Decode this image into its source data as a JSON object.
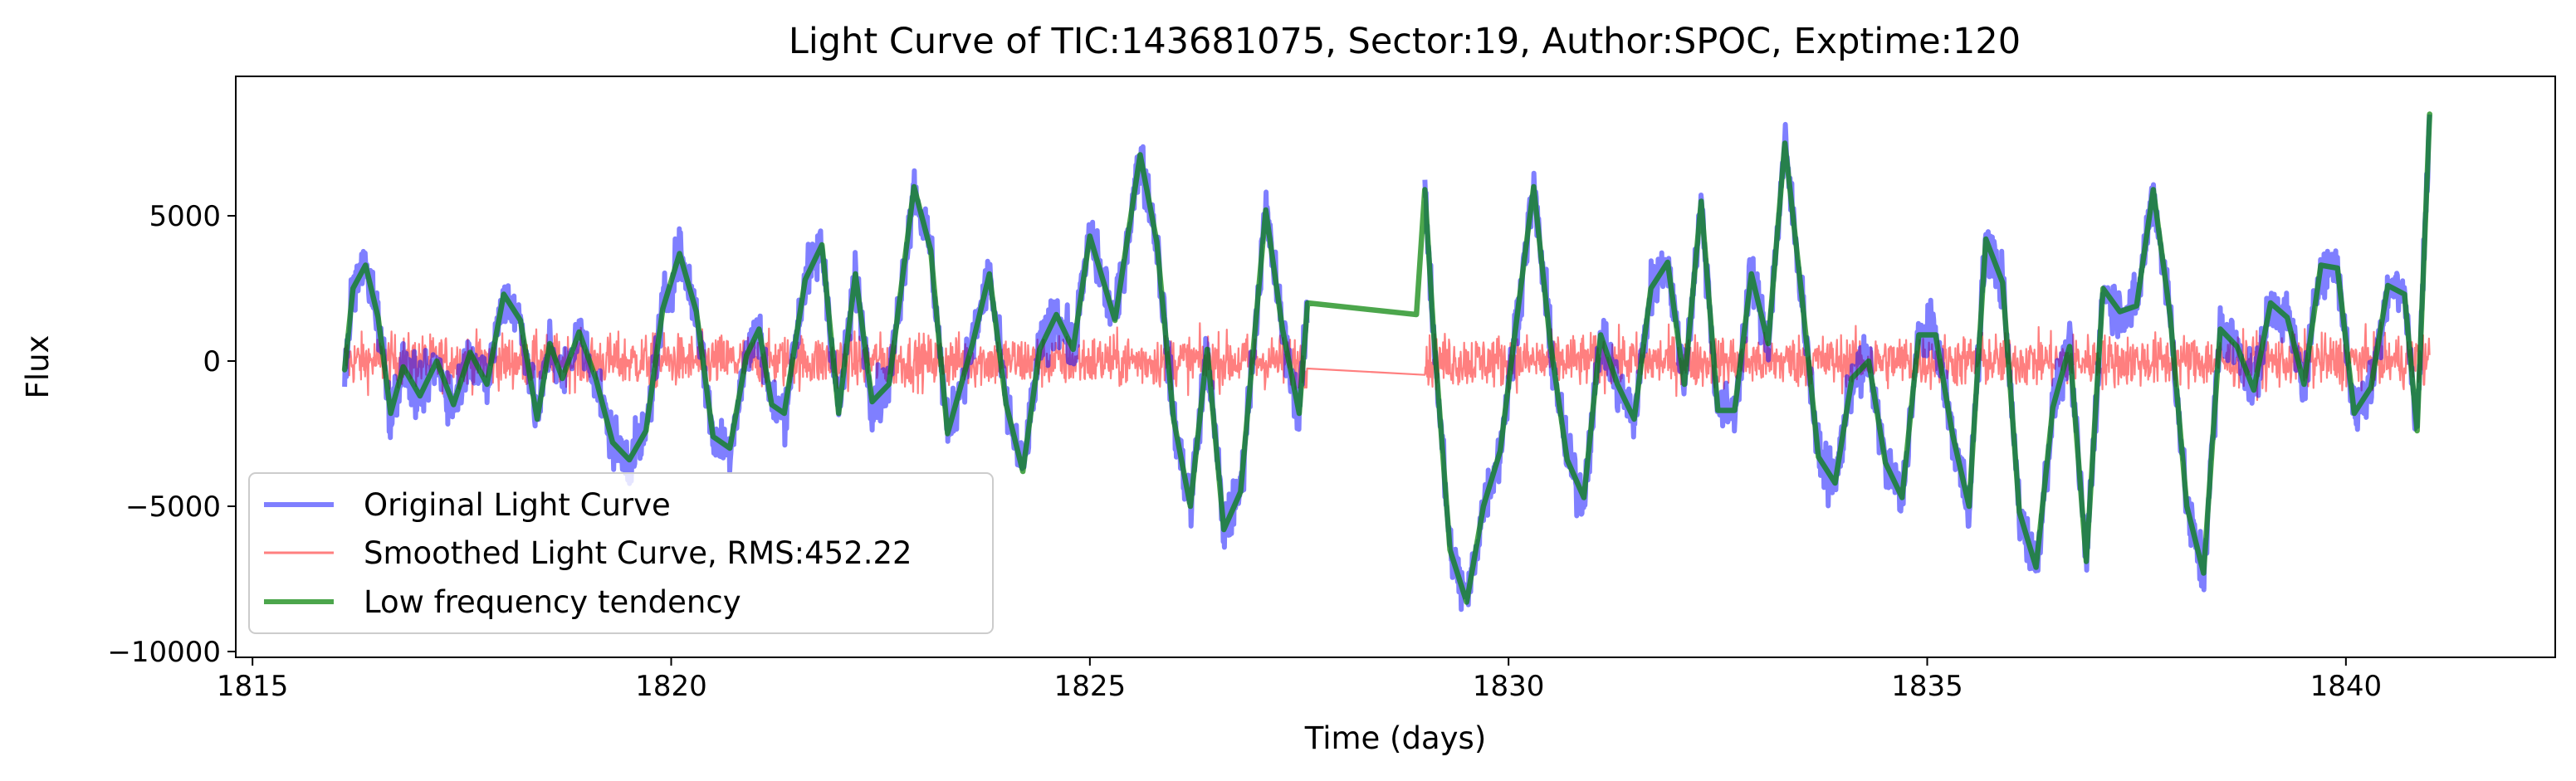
{
  "chart_data": {
    "type": "line",
    "title": "Light Curve of TIC:143681075, Sector:19, Author:SPOC, Exptime:120",
    "xlabel": "Time (days)",
    "ylabel": "Flux",
    "xlim": [
      1814.8,
      1842.5
    ],
    "ylim": [
      -10200,
      9800
    ],
    "xticks": [
      1815,
      1820,
      1825,
      1830,
      1835,
      1840
    ],
    "yticks": [
      -10000,
      -5000,
      0,
      5000
    ],
    "xtick_labels": [
      "1815",
      "1820",
      "1825",
      "1830",
      "1835",
      "1840"
    ],
    "ytick_labels": [
      "−10000",
      "−5000",
      "0",
      "5000"
    ],
    "grid": false,
    "legend_position": "lower-left",
    "gap": [
      1827.6,
      1829.0
    ],
    "series": [
      {
        "name": "Original Light Curve",
        "color": "#0000ff",
        "opacity": 0.5,
        "style": "thick-noisy",
        "noise_amplitude": 450
      },
      {
        "name": "Smoothed Light Curve, RMS:452.22",
        "color": "#ff0000",
        "opacity": 0.5,
        "style": "thin-noise",
        "rms": 452.22
      },
      {
        "name": "Low frequency tendency",
        "color": "#008000",
        "opacity": 0.7,
        "style": "thick",
        "x": [
          1816.1,
          1816.2,
          1816.35,
          1816.5,
          1816.65,
          1816.8,
          1817.0,
          1817.2,
          1817.4,
          1817.6,
          1817.8,
          1818.0,
          1818.2,
          1818.4,
          1818.55,
          1818.7,
          1818.9,
          1819.1,
          1819.3,
          1819.5,
          1819.7,
          1819.9,
          1820.1,
          1820.3,
          1820.5,
          1820.7,
          1820.9,
          1821.05,
          1821.2,
          1821.35,
          1821.6,
          1821.8,
          1822.0,
          1822.2,
          1822.4,
          1822.6,
          1822.9,
          1823.1,
          1823.3,
          1823.6,
          1823.8,
          1824.0,
          1824.2,
          1824.4,
          1824.6,
          1824.8,
          1825.0,
          1825.3,
          1825.6,
          1825.8,
          1826.0,
          1826.2,
          1826.4,
          1826.6,
          1826.8,
          1827.1,
          1827.3,
          1827.5,
          1827.6,
          1828.9,
          1829.0,
          1829.1,
          1829.3,
          1829.5,
          1829.7,
          1829.9,
          1830.1,
          1830.3,
          1830.5,
          1830.7,
          1830.9,
          1831.1,
          1831.3,
          1831.5,
          1831.7,
          1831.9,
          1832.1,
          1832.3,
          1832.5,
          1832.7,
          1832.9,
          1833.1,
          1833.3,
          1833.5,
          1833.7,
          1833.9,
          1834.1,
          1834.3,
          1834.5,
          1834.7,
          1834.9,
          1835.1,
          1835.3,
          1835.5,
          1835.7,
          1835.9,
          1836.1,
          1836.3,
          1836.5,
          1836.7,
          1836.9,
          1837.1,
          1837.3,
          1837.5,
          1837.7,
          1837.9,
          1838.1,
          1838.3,
          1838.5,
          1838.7,
          1838.9,
          1839.1,
          1839.3,
          1839.5,
          1839.7,
          1839.9,
          1840.1,
          1840.3,
          1840.5,
          1840.7,
          1840.85,
          1841.0
        ],
        "y": [
          -300,
          2500,
          3300,
          1500,
          -1800,
          -200,
          -1200,
          0,
          -1500,
          300,
          -800,
          2300,
          1400,
          -2000,
          600,
          -600,
          1000,
          -600,
          -2800,
          -3400,
          -2400,
          1800,
          3700,
          1700,
          -2600,
          -3000,
          200,
          1100,
          -1500,
          -1800,
          2800,
          4000,
          -1800,
          3000,
          -1400,
          -800,
          6000,
          3800,
          -2500,
          600,
          3000,
          -1500,
          -3800,
          400,
          1600,
          400,
          4300,
          1400,
          7100,
          4100,
          -2000,
          -5000,
          400,
          -5800,
          -4500,
          5200,
          1100,
          -1800,
          2000,
          1600,
          5900,
          1200,
          -6500,
          -8300,
          -5000,
          -3100,
          1500,
          6000,
          600,
          -3400,
          -4700,
          900,
          -800,
          -2000,
          2500,
          3400,
          -800,
          5500,
          -1700,
          -1700,
          3000,
          600,
          7500,
          2300,
          -3300,
          -4200,
          -600,
          0,
          -3500,
          -4700,
          900,
          900,
          -2500,
          -5000,
          4200,
          2700,
          -5200,
          -7100,
          -1600,
          500,
          -6900,
          2500,
          1700,
          1900,
          5900,
          1600,
          -5000,
          -7300,
          1100,
          500,
          -1000,
          2000,
          1500,
          -800,
          3300,
          3200,
          -1800,
          -900,
          2600,
          2300,
          -2400,
          8500
        ]
      }
    ]
  }
}
